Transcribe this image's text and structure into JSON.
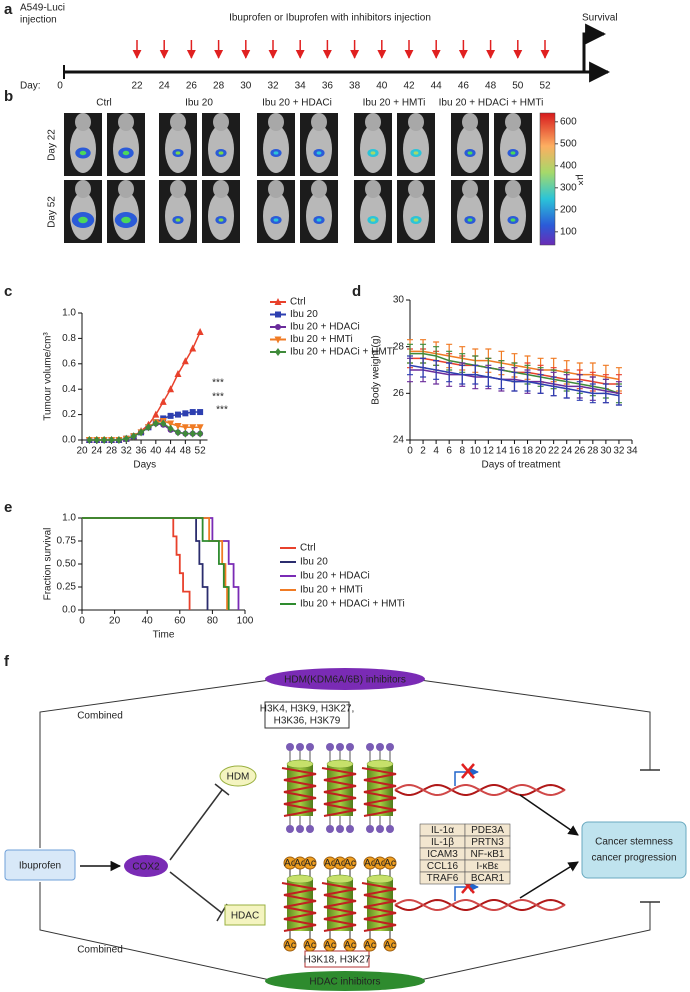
{
  "panel_labels": [
    "a",
    "b",
    "c",
    "d",
    "e",
    "f"
  ],
  "panel_a": {
    "injection_label": [
      "A549-Luci",
      "injection"
    ],
    "treatment_label": "Ibuprofen or Ibuprofen with inhibitors injection",
    "end_label": "Survival",
    "day_prefix": "Day:",
    "start_day": 0,
    "injection_days": [
      22,
      24,
      26,
      28,
      30,
      32,
      34,
      36,
      38,
      40,
      42,
      44,
      46,
      48,
      50,
      52
    ]
  },
  "panel_b": {
    "columns": [
      "Ctrl",
      "Ibu 20",
      "Ibu 20 + HDACi",
      "Ibu 20 + HMTi",
      "Ibu 20 + HDACi + HMTi"
    ],
    "rows": [
      "Day 22",
      "Day 52"
    ],
    "colorbar": {
      "label": "µ×",
      "lim": [
        40,
        640
      ],
      "ticks": [
        100,
        200,
        300,
        400,
        500,
        600
      ]
    }
  },
  "chart_data": [
    {
      "type": "line",
      "x_label": "Days",
      "y_label": "Tumour volume/cm³",
      "xlim": [
        20,
        54
      ],
      "xticks": [
        20,
        24,
        28,
        32,
        36,
        40,
        44,
        48,
        52
      ],
      "ylim": [
        0,
        1.0
      ],
      "yticks": [
        {
          "value": 0,
          "label": "0.0"
        },
        {
          "value": 0.2,
          "label": "0.2"
        },
        {
          "value": 0.4,
          "label": "0.4"
        },
        {
          "value": 0.6,
          "label": "0.6"
        },
        {
          "value": 0.8,
          "label": "0.8"
        },
        {
          "value": 1.0,
          "label": "1.0"
        }
      ],
      "legend": "outside right",
      "x": [
        22,
        24,
        26,
        28,
        30,
        32,
        34,
        36,
        38,
        40,
        42,
        44,
        46,
        48,
        50,
        52
      ],
      "series": [
        {
          "name": "Ctrl",
          "color": "#e8412c",
          "marker": "triangle-up",
          "values": [
            0,
            0,
            0,
            0,
            0,
            0.01,
            0.03,
            0.07,
            0.12,
            0.2,
            0.3,
            0.4,
            0.52,
            0.62,
            0.72,
            0.85
          ]
        },
        {
          "name": "Ibu 20",
          "color": "#2d3fb0",
          "marker": "square",
          "values": [
            0,
            0,
            0,
            0,
            0,
            0.01,
            0.03,
            0.06,
            0.1,
            0.14,
            0.17,
            0.19,
            0.2,
            0.21,
            0.22,
            0.22
          ]
        },
        {
          "name": "Ibu 20 + HDACi",
          "color": "#6a2c9b",
          "marker": "circle",
          "values": [
            0,
            0,
            0,
            0,
            0,
            0.01,
            0.03,
            0.06,
            0.1,
            0.13,
            0.12,
            0.08,
            0.06,
            0.05,
            0.05,
            0.05
          ]
        },
        {
          "name": "Ibu 20 + HMTi",
          "color": "#f07b24",
          "marker": "triangle-down",
          "values": [
            0,
            0,
            0,
            0,
            0,
            0.01,
            0.03,
            0.06,
            0.1,
            0.14,
            0.15,
            0.13,
            0.11,
            0.1,
            0.1,
            0.1
          ]
        },
        {
          "name": "Ibu 20 + HDACi + HMTi",
          "color": "#3f8a3a",
          "marker": "diamond",
          "values": [
            0,
            0,
            0,
            0,
            0,
            0.01,
            0.03,
            0.06,
            0.1,
            0.13,
            0.13,
            0.09,
            0.06,
            0.05,
            0.05,
            0.05
          ]
        }
      ],
      "annotations": [
        "***",
        "***",
        "***"
      ]
    },
    {
      "type": "line",
      "x_label": "Days of treatment",
      "y_label": "Body weight (g)",
      "xlim": [
        0,
        34
      ],
      "xticks": [
        0,
        2,
        4,
        6,
        8,
        10,
        12,
        14,
        16,
        18,
        20,
        22,
        24,
        26,
        28,
        30,
        32,
        34
      ],
      "ylim": [
        24,
        30
      ],
      "yticks": [
        24,
        26,
        28,
        30
      ],
      "x": [
        0,
        2,
        4,
        6,
        8,
        10,
        12,
        14,
        16,
        18,
        20,
        22,
        24,
        26,
        28,
        30,
        32
      ],
      "series": [
        {
          "color": "#f07b24",
          "values": [
            27.8,
            27.8,
            27.7,
            27.6,
            27.5,
            27.4,
            27.4,
            27.3,
            27.2,
            27.1,
            27.0,
            27.0,
            26.9,
            26.8,
            26.8,
            26.7,
            26.6
          ],
          "errors": [
            0.5,
            0.5,
            0.5,
            0.5,
            0.5,
            0.5,
            0.5,
            0.5,
            0.5,
            0.5,
            0.5,
            0.5,
            0.5,
            0.5,
            0.5,
            0.5,
            0.5
          ]
        },
        {
          "color": "#e8412c",
          "values": [
            27.5,
            27.5,
            27.4,
            27.3,
            27.2,
            27.2,
            27.1,
            27.0,
            26.9,
            26.9,
            26.8,
            26.7,
            26.6,
            26.6,
            26.5,
            26.4,
            26.4
          ],
          "errors": [
            0.4,
            0.4,
            0.4,
            0.4,
            0.4,
            0.4,
            0.4,
            0.4,
            0.4,
            0.4,
            0.4,
            0.4,
            0.4,
            0.4,
            0.4,
            0.4,
            0.4
          ]
        },
        {
          "color": "#3f8a3a",
          "values": [
            27.7,
            27.7,
            27.6,
            27.4,
            27.3,
            27.2,
            27.1,
            27.0,
            26.9,
            26.8,
            26.7,
            26.6,
            26.5,
            26.4,
            26.3,
            26.2,
            26.0
          ],
          "errors": [
            0.4,
            0.4,
            0.4,
            0.4,
            0.4,
            0.4,
            0.4,
            0.4,
            0.4,
            0.4,
            0.4,
            0.4,
            0.4,
            0.4,
            0.4,
            0.4,
            0.4
          ]
        },
        {
          "color": "#6a2c9b",
          "values": [
            27.0,
            27.0,
            26.9,
            26.8,
            26.8,
            26.7,
            26.7,
            26.6,
            26.6,
            26.5,
            26.5,
            26.4,
            26.3,
            26.3,
            26.2,
            26.1,
            26.0
          ],
          "errors": [
            0.5,
            0.5,
            0.5,
            0.5,
            0.5,
            0.5,
            0.5,
            0.5,
            0.5,
            0.5,
            0.5,
            0.5,
            0.5,
            0.5,
            0.5,
            0.5,
            0.5
          ]
        },
        {
          "color": "#2d3fb0",
          "values": [
            27.2,
            27.1,
            27.0,
            26.9,
            26.8,
            26.8,
            26.7,
            26.6,
            26.5,
            26.5,
            26.4,
            26.3,
            26.2,
            26.1,
            26.0,
            26.0,
            25.9
          ],
          "errors": [
            0.4,
            0.4,
            0.4,
            0.4,
            0.4,
            0.4,
            0.4,
            0.4,
            0.4,
            0.4,
            0.4,
            0.4,
            0.4,
            0.4,
            0.4,
            0.4,
            0.4
          ]
        }
      ]
    },
    {
      "type": "step",
      "x_label": "Time",
      "y_label": "Fraction survival",
      "xlim": [
        0,
        100
      ],
      "xticks": [
        0,
        20,
        40,
        60,
        80,
        100
      ],
      "ylim": [
        0,
        1.0
      ],
      "yticks": [
        {
          "value": 0,
          "label": "0.0"
        },
        0.25,
        {
          "value": 0.5,
          "label": "0.50"
        },
        0.75,
        {
          "value": 1.0,
          "label": "1.0"
        }
      ],
      "legend": "outside right",
      "series": [
        {
          "name": "Ctrl",
          "color": "#e8412c",
          "x": [
            0,
            56,
            58,
            60,
            62,
            66
          ],
          "values": [
            1.0,
            0.8,
            0.6,
            0.4,
            0.2,
            0
          ]
        },
        {
          "name": "Ibu 20",
          "color": "#2b2d6e",
          "x": [
            0,
            70,
            72,
            74,
            77
          ],
          "values": [
            1.0,
            0.75,
            0.5,
            0.25,
            0
          ]
        },
        {
          "name": "Ibu 20 + HDACi",
          "color": "#7a2bb5",
          "x": [
            0,
            80,
            90,
            93,
            96
          ],
          "values": [
            1.0,
            0.75,
            0.5,
            0.25,
            0
          ]
        },
        {
          "name": "Ibu 20 + HMTi",
          "color": "#f07b24",
          "x": [
            0,
            78,
            86,
            88,
            89
          ],
          "values": [
            1.0,
            0.75,
            0.5,
            0.25,
            0
          ]
        },
        {
          "name": "Ibu 20 + HDACi + HMTi",
          "color": "#2e8b2e",
          "x": [
            0,
            74,
            84,
            87,
            90
          ],
          "values": [
            1.0,
            0.75,
            0.5,
            0.25,
            0
          ]
        }
      ]
    }
  ],
  "panel_f": {
    "hdm_inhibitors": "HDM(KDM6A/6B) inhibitors",
    "hdac_inhibitors": "HDAC inhibitors",
    "combined": "Combined",
    "hdm_marks": [
      "H3K4, H3K9, H3K27,",
      "H3K36, H3K79"
    ],
    "hdac_marks": "H3K18, H3K27",
    "ibuprofen": "Ibuprofen",
    "cox2": "COX2",
    "hdm": "HDM",
    "hdac": "HDAC",
    "acetyl": "Ac",
    "genes": [
      [
        "IL-1α",
        "PDE3A"
      ],
      [
        "IL-1β",
        "PRTN3"
      ],
      [
        "ICAM3",
        "NF-κB1"
      ],
      [
        "CCL16",
        "I-κBε"
      ],
      [
        "TRAF6",
        "BCAR1"
      ]
    ],
    "outcome": [
      "Cancer stemness",
      "cancer progression"
    ]
  }
}
